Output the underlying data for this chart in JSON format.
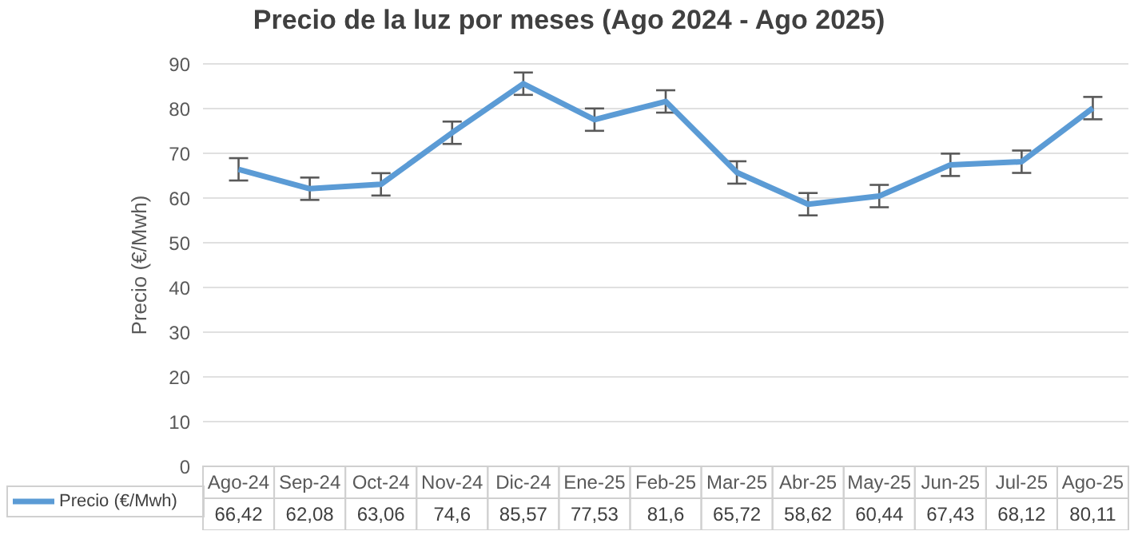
{
  "chart_data": {
    "type": "line",
    "title": "Precio de la luz por meses (Ago 2024 - Ago 2025)",
    "ylabel": "Precio (€/Mwh)",
    "categories": [
      "Ago-24",
      "Sep-24",
      "Oct-24",
      "Nov-24",
      "Dic-24",
      "Ene-25",
      "Feb-25",
      "Mar-25",
      "Abr-25",
      "May-25",
      "Jun-25",
      "Jul-25",
      "Ago-25"
    ],
    "series": [
      {
        "name": "Precio (€/Mwh)",
        "color": "#5b9bd5",
        "values": [
          66.42,
          62.08,
          63.06,
          74.6,
          85.57,
          77.53,
          81.6,
          65.72,
          58.62,
          60.44,
          67.43,
          68.12,
          80.11
        ],
        "errors": [
          2.5,
          2.5,
          2.5,
          2.5,
          2.5,
          2.5,
          2.5,
          2.5,
          2.5,
          2.5,
          2.5,
          2.5,
          2.5
        ],
        "value_labels": [
          "66,42",
          "62,08",
          "63,06",
          "74,6",
          "85,57",
          "77,53",
          "81,6",
          "65,72",
          "58,62",
          "60,44",
          "67,43",
          "68,12",
          "80,11"
        ]
      }
    ],
    "ylim": [
      0,
      90
    ],
    "yticks": [
      0,
      10,
      20,
      30,
      40,
      50,
      60,
      70,
      80,
      90
    ],
    "grid": "y",
    "legend": "bottom",
    "marker": "none",
    "line_style": "solid"
  }
}
